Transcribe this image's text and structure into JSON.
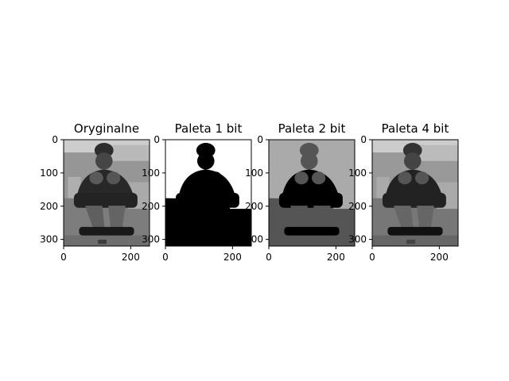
{
  "chart_data": [
    {
      "type": "image",
      "title": "Oryginalne",
      "palette_bits": null,
      "image_shape": [
        320,
        256
      ],
      "xlim": [
        0,
        256
      ],
      "ylim": [
        320,
        0
      ],
      "xticks": [
        0,
        200
      ],
      "yticks": [
        0,
        100,
        200,
        300
      ],
      "xtick_labels": [
        "0",
        "200"
      ],
      "ytick_labels": [
        "0",
        "100",
        "200",
        "300"
      ],
      "colormap": "gray"
    },
    {
      "type": "image",
      "title": "Paleta 1 bit",
      "palette_bits": 1,
      "image_shape": [
        320,
        256
      ],
      "xlim": [
        0,
        256
      ],
      "ylim": [
        320,
        0
      ],
      "xticks": [
        0,
        200
      ],
      "yticks": [
        0,
        100,
        200,
        300
      ],
      "xtick_labels": [
        "0",
        "200"
      ],
      "ytick_labels": [
        "0",
        "100",
        "200",
        "300"
      ],
      "colormap": "gray"
    },
    {
      "type": "image",
      "title": "Paleta 2 bit",
      "palette_bits": 2,
      "image_shape": [
        320,
        256
      ],
      "xlim": [
        0,
        256
      ],
      "ylim": [
        320,
        0
      ],
      "xticks": [
        0,
        200
      ],
      "yticks": [
        0,
        100,
        200,
        300
      ],
      "xtick_labels": [
        "0",
        "200"
      ],
      "ytick_labels": [
        "0",
        "100",
        "200",
        "300"
      ],
      "colormap": "gray"
    },
    {
      "type": "image",
      "title": "Paleta 4 bit",
      "palette_bits": 4,
      "image_shape": [
        320,
        256
      ],
      "xlim": [
        0,
        256
      ],
      "ylim": [
        320,
        0
      ],
      "xticks": [
        0,
        200
      ],
      "yticks": [
        0,
        100,
        200,
        300
      ],
      "xtick_labels": [
        "0",
        "200"
      ],
      "ytick_labels": [
        "0",
        "100",
        "200",
        "300"
      ],
      "colormap": "gray"
    }
  ]
}
